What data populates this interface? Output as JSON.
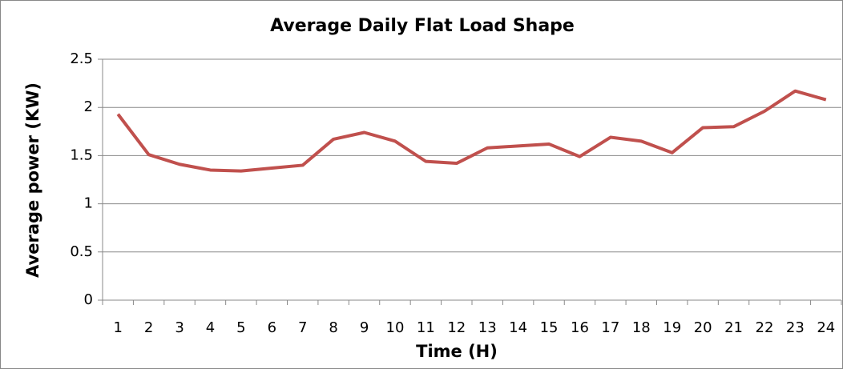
{
  "chart_data": {
    "type": "line",
    "title": "Average Daily Flat Load Shape",
    "x_label": "Time (H)",
    "y_label": "Average power (KW)",
    "categories": [
      "1",
      "2",
      "3",
      "4",
      "5",
      "6",
      "7",
      "8",
      "9",
      "10",
      "11",
      "12",
      "13",
      "14",
      "15",
      "16",
      "17",
      "18",
      "19",
      "20",
      "21",
      "22",
      "23",
      "24"
    ],
    "series": [
      {
        "color": "#c0504d",
        "values": [
          1.93,
          1.51,
          1.41,
          1.35,
          1.34,
          1.37,
          1.4,
          1.67,
          1.74,
          1.65,
          1.44,
          1.42,
          1.58,
          1.6,
          1.62,
          1.49,
          1.69,
          1.65,
          1.53,
          1.79,
          1.8,
          1.96,
          2.17,
          2.08
        ]
      }
    ],
    "ylim": [
      0,
      2.5
    ],
    "yticks": [
      0,
      0.5,
      1,
      1.5,
      2,
      2.5
    ],
    "grid": true
  }
}
